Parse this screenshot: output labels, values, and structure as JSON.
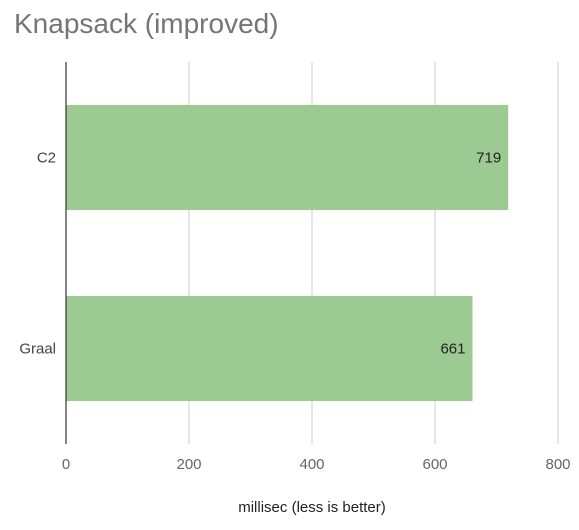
{
  "chart_data": {
    "type": "bar",
    "orientation": "horizontal",
    "title": "Knapsack (improved)",
    "xlabel": "millisec (less is better)",
    "ylabel": "",
    "categories": [
      "C2",
      "Graal"
    ],
    "values": [
      719,
      661
    ],
    "data_labels": [
      "719",
      "661"
    ],
    "xlim": [
      0,
      800
    ],
    "xticks": [
      0,
      200,
      400,
      600,
      800
    ],
    "xtick_labels": [
      "0",
      "200",
      "400",
      "600",
      "800"
    ],
    "grid": "vertical",
    "legend": "none",
    "bar_color": "#9dc992"
  }
}
